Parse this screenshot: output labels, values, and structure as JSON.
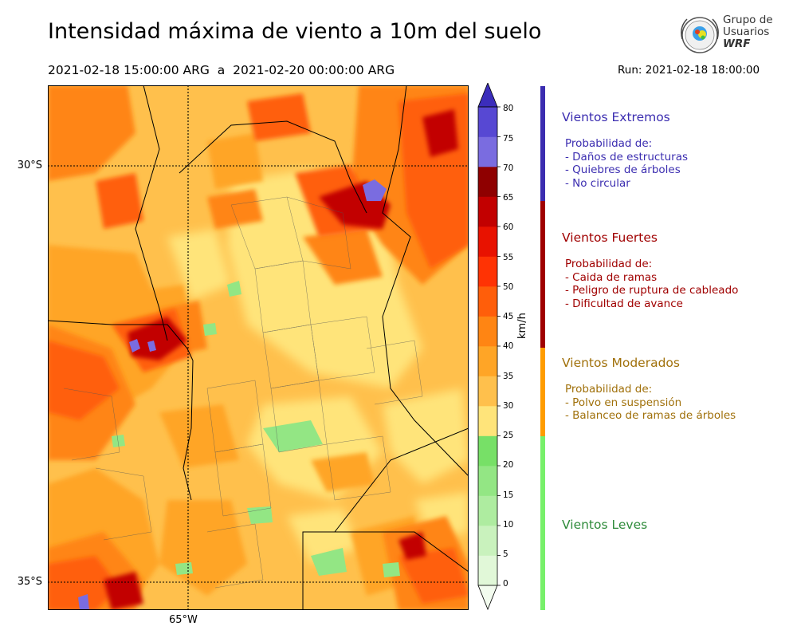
{
  "header": {
    "title": "Intensidad máxima de viento a 10m del suelo",
    "period_start": "2021-02-18 15:00:00 ARG",
    "period_sep": "a",
    "period_end": "2021-02-20 00:00:00 ARG",
    "run": "Run: 2021-02-18 18:00:00"
  },
  "logo": {
    "line1": "Grupo de",
    "line2": "Usuarios",
    "line3": "WRF"
  },
  "map": {
    "lat_labels": [
      "30°S",
      "35°S"
    ],
    "lon_labels": [
      "65°W"
    ]
  },
  "colorbar": {
    "unit": "km/h",
    "ticks": [
      "0",
      "5",
      "10",
      "15",
      "20",
      "25",
      "30",
      "35",
      "40",
      "45",
      "50",
      "55",
      "60",
      "65",
      "70",
      "75",
      "80"
    ],
    "colors": [
      "#f3fcef",
      "#e1f8d8",
      "#c9f2bd",
      "#aeeca0",
      "#93e684",
      "#77e067",
      "#ffe47a",
      "#ffc04c",
      "#ffa526",
      "#ff8513",
      "#ff5e0a",
      "#ff3304",
      "#e81200",
      "#c20000",
      "#8f0000",
      "#7a6ce0",
      "#5748d3",
      "#3b2dbb"
    ]
  },
  "categories": [
    {
      "name": "Vientos Extremos",
      "color": "#3b2db0",
      "items": [
        "Probabilidad de:",
        "- Daños de estructuras",
        "- Quiebres de árboles",
        "- No circular"
      ]
    },
    {
      "name": "Vientos Fuertes",
      "color": "#a00000",
      "items": [
        "Probabilidad de:",
        "- Caida de ramas",
        "- Peligro de ruptura de cableado",
        "- Dificultad de avance"
      ]
    },
    {
      "name": "Vientos Moderados",
      "color": "#a0700a",
      "items": [
        "Probabilidad de:",
        "- Polvo en suspensión",
        "- Balanceo de ramas de árboles"
      ]
    },
    {
      "name": "Vientos Leves",
      "color": "#2e8b3a",
      "items": []
    }
  ],
  "stripe_colors": {
    "extreme": "#3b2db0",
    "strong": "#a00000",
    "moderate": "#ff9c00",
    "light": "#77f06a"
  }
}
